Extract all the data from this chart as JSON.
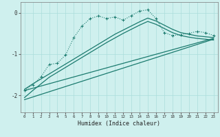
{
  "xlabel": "Humidex (Indice chaleur)",
  "bg_color": "#cff0ee",
  "grid_color": "#aaddda",
  "line_color": "#1a7a6e",
  "xlim": [
    -0.5,
    23.5
  ],
  "ylim": [
    -2.4,
    0.25
  ],
  "yticks": [
    0,
    -1,
    -2
  ],
  "xticks": [
    0,
    1,
    2,
    3,
    4,
    5,
    6,
    7,
    8,
    9,
    10,
    11,
    12,
    13,
    14,
    15,
    16,
    17,
    18,
    19,
    20,
    21,
    22,
    23
  ],
  "line1_x": [
    0,
    1,
    2,
    3,
    4,
    5,
    6,
    7,
    8,
    9,
    10,
    11,
    12,
    13,
    14,
    15,
    16,
    17,
    18,
    19,
    20,
    21,
    22,
    23
  ],
  "line1_y": [
    -1.85,
    -1.72,
    -1.6,
    -1.48,
    -1.36,
    -1.24,
    -1.12,
    -1.0,
    -0.88,
    -0.76,
    -0.64,
    -0.52,
    -0.42,
    -0.32,
    -0.22,
    -0.13,
    -0.2,
    -0.3,
    -0.4,
    -0.48,
    -0.52,
    -0.56,
    -0.58,
    -0.6
  ],
  "line2_x": [
    0,
    1,
    2,
    3,
    4,
    5,
    6,
    7,
    8,
    9,
    10,
    11,
    12,
    13,
    14,
    15,
    16,
    17,
    18,
    19,
    20,
    21,
    22,
    23
  ],
  "line2_y": [
    -2.05,
    -1.88,
    -1.72,
    -1.56,
    -1.44,
    -1.32,
    -1.2,
    -1.08,
    -0.96,
    -0.84,
    -0.72,
    -0.61,
    -0.5,
    -0.4,
    -0.3,
    -0.21,
    -0.28,
    -0.38,
    -0.48,
    -0.55,
    -0.59,
    -0.62,
    -0.64,
    -0.66
  ],
  "line3_x": [
    0,
    23
  ],
  "line3_y": [
    -1.88,
    -0.62
  ],
  "line4_x": [
    0,
    23
  ],
  "line4_y": [
    -2.1,
    -0.64
  ],
  "dotted_x": [
    0,
    1,
    2,
    3,
    4,
    5,
    6,
    7,
    8,
    9,
    10,
    11,
    12,
    13,
    14,
    15,
    16,
    17,
    18,
    19,
    20,
    21,
    22,
    23
  ],
  "dotted_y": [
    -1.88,
    -1.74,
    -1.55,
    -1.25,
    -1.22,
    -1.02,
    -0.6,
    -0.32,
    -0.14,
    -0.08,
    -0.14,
    -0.1,
    -0.18,
    -0.07,
    0.04,
    0.07,
    -0.14,
    -0.48,
    -0.55,
    -0.53,
    -0.5,
    -0.45,
    -0.48,
    -0.55
  ]
}
